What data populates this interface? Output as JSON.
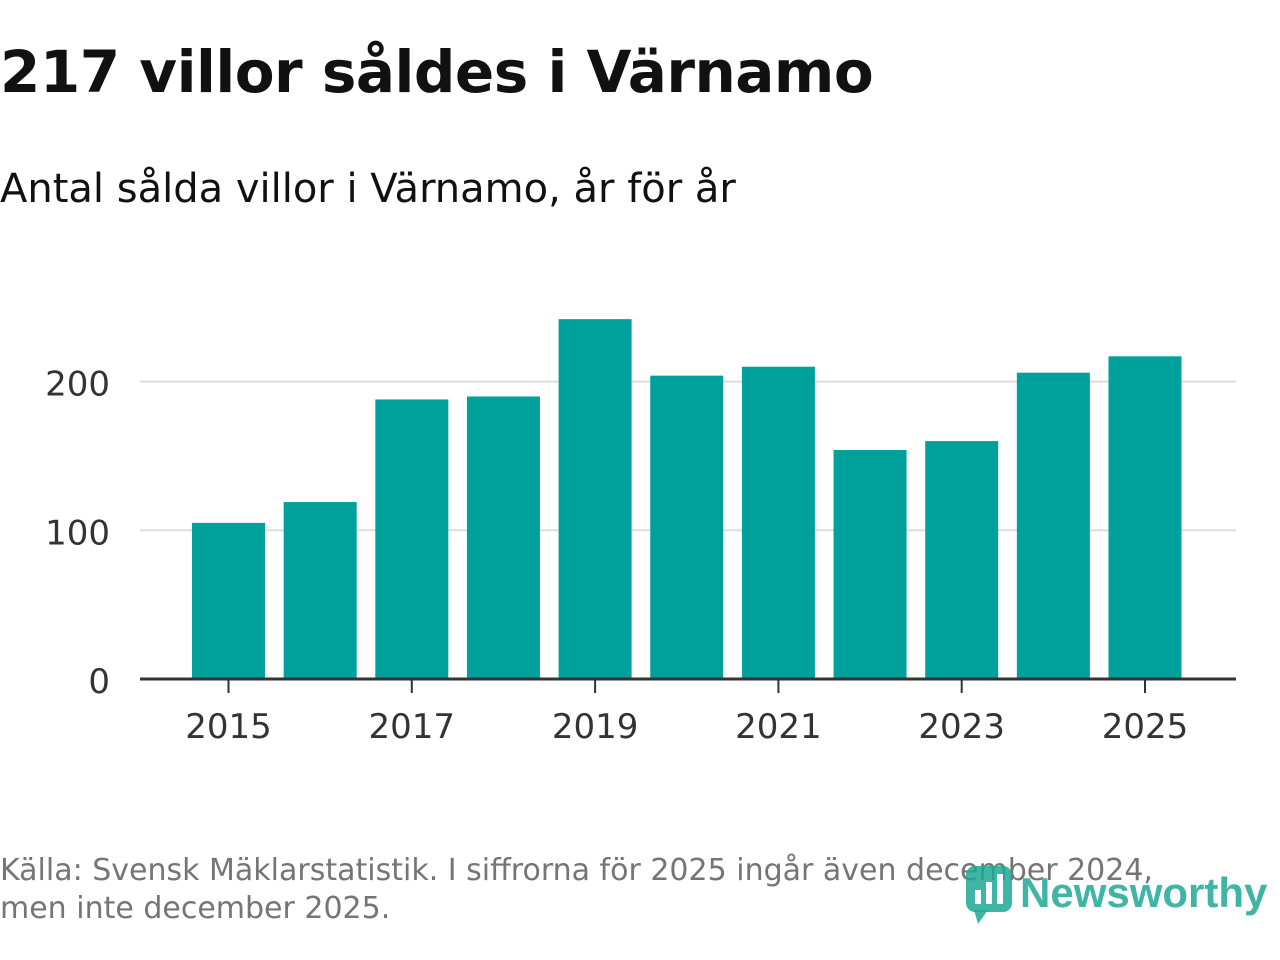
{
  "header": {
    "title": "217 villor såldes i Värnamo",
    "subtitle": "Antal sålda villor i Värnamo, år för år"
  },
  "footer": {
    "source": "Källa: Svensk Mäklarstatistik. I siffrorna för 2025 ingår även december 2024, men inte december 2025.",
    "logo_text": "Newsworthy"
  },
  "colors": {
    "bar": "#00a19a",
    "grid": "#dddddd",
    "axis": "#333333",
    "logo": "#1fa896"
  },
  "chart_data": {
    "type": "bar",
    "title": "217 villor såldes i Värnamo",
    "subtitle": "Antal sålda villor i Värnamo, år för år",
    "categories": [
      2015,
      2016,
      2017,
      2018,
      2019,
      2020,
      2021,
      2022,
      2023,
      2024,
      2025
    ],
    "values": [
      105,
      119,
      188,
      190,
      242,
      204,
      210,
      154,
      160,
      206,
      217
    ],
    "xticks": [
      "2015",
      "2017",
      "2019",
      "2021",
      "2023",
      "2025"
    ],
    "yticks": [
      "0",
      "100",
      "200"
    ],
    "ylim": [
      0,
      260
    ],
    "xlabel": "",
    "ylabel": "",
    "grid": true
  }
}
